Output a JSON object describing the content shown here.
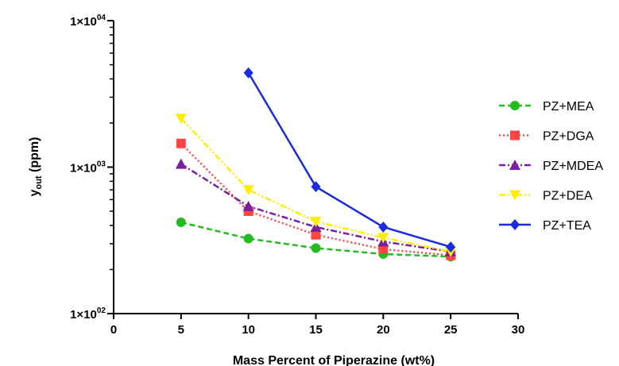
{
  "chart_data": {
    "type": "line",
    "title": "",
    "xlabel": "Mass Percent of Piperazine (wt%)",
    "ylabel": {
      "main": "y",
      "sub": "out",
      "unit": " (ppm)"
    },
    "xlim": [
      0,
      30
    ],
    "ylim": [
      100,
      10000
    ],
    "yscale": "log",
    "x_ticks": [
      "0",
      "5",
      "10",
      "15",
      "20",
      "25",
      "30"
    ],
    "y_ticks": [
      {
        "value": 100,
        "base": "1×10",
        "exp": "02"
      },
      {
        "value": 1000,
        "base": "1×10",
        "exp": "03"
      },
      {
        "value": 10000,
        "base": "1×10",
        "exp": "04"
      }
    ],
    "grid": false,
    "legend_position": "right",
    "series": [
      {
        "name": "PZ+MEA",
        "color": "#22bb22",
        "marker": "circle",
        "dash": "dashed",
        "x": [
          5,
          10,
          15,
          20,
          25
        ],
        "y": [
          420,
          325,
          280,
          255,
          245
        ]
      },
      {
        "name": "PZ+DGA",
        "color": "#ff4444",
        "marker": "square",
        "dash": "dotted",
        "x": [
          5,
          10,
          15,
          20,
          25
        ],
        "y": [
          1450,
          500,
          345,
          275,
          250
        ]
      },
      {
        "name": "PZ+MDEA",
        "color": "#7a1fa0",
        "marker": "triangle-up",
        "dash": "dashdot",
        "x": [
          5,
          10,
          15,
          20,
          25
        ],
        "y": [
          1050,
          540,
          390,
          310,
          265
        ]
      },
      {
        "name": "PZ+DEA",
        "color": "#ffee00",
        "marker": "triangle-down",
        "dash": "dashdotdot",
        "x": [
          5,
          10,
          15,
          20,
          25
        ],
        "y": [
          2150,
          700,
          425,
          330,
          265
        ]
      },
      {
        "name": "PZ+TEA",
        "color": "#1a2be0",
        "marker": "diamond",
        "dash": "solid",
        "x": [
          10,
          15,
          20,
          25
        ],
        "y": [
          4400,
          735,
          390,
          285
        ]
      }
    ]
  }
}
